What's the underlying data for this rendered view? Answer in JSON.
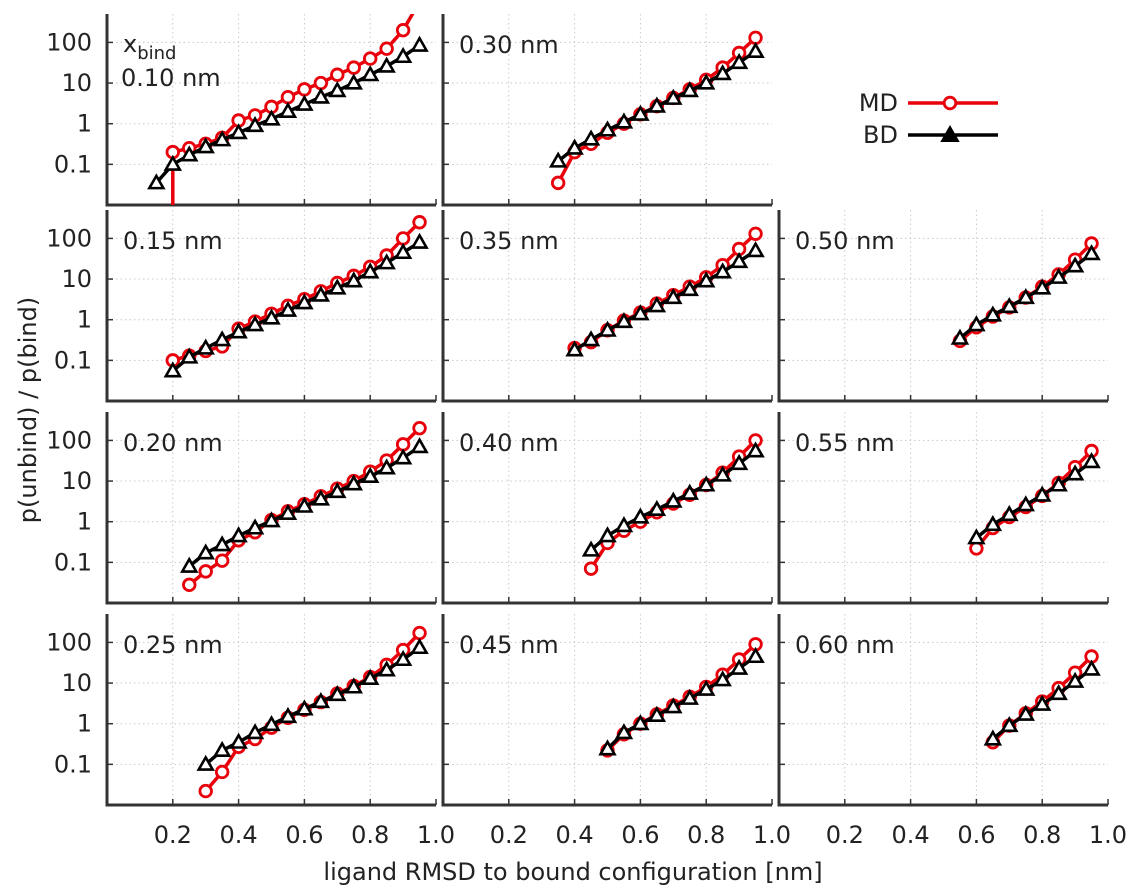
{
  "chart_data": {
    "type": "line",
    "ylabel": "p(unbind) / p(bind)",
    "xlabel": "ligand RMSD to bound configuration [nm]",
    "x_scale": "linear",
    "y_scale": "log",
    "xlim": [
      0,
      1.0
    ],
    "ylim": [
      0.01,
      500
    ],
    "x_ticks": [
      0.2,
      0.4,
      0.6,
      0.8,
      1.0
    ],
    "x_tick_labels": [
      "0.2",
      "0.4",
      "0.6",
      "0.8",
      "1.0"
    ],
    "y_ticks": [
      0.1,
      1,
      10,
      100
    ],
    "y_tick_labels": [
      "0.1",
      "1",
      "10",
      "100"
    ],
    "grid": true,
    "legend": {
      "placement": "top-right",
      "entries": [
        {
          "name": "MD",
          "color": "#e8000b",
          "marker": "open-circle"
        },
        {
          "name": "BD",
          "color": "#000000",
          "marker": "triangle"
        }
      ]
    },
    "legend_heading": {
      "main": "x",
      "sub": "bind"
    },
    "panels": [
      {
        "label": "0.10 nm",
        "row": 0,
        "col": 0,
        "MD": {
          "x": [
            0.2,
            0.25,
            0.3,
            0.35,
            0.4,
            0.45,
            0.5,
            0.55,
            0.6,
            0.65,
            0.7,
            0.75,
            0.8,
            0.85,
            0.9,
            0.95
          ],
          "y": [
            0.2,
            0.25,
            0.32,
            0.45,
            1.2,
            1.6,
            2.6,
            4.5,
            7,
            10,
            16,
            24,
            40,
            70,
            200,
            1000
          ],
          "drop_start": true
        },
        "BD": {
          "x": [
            0.15,
            0.2,
            0.25,
            0.3,
            0.35,
            0.4,
            0.45,
            0.5,
            0.55,
            0.6,
            0.65,
            0.7,
            0.75,
            0.8,
            0.85,
            0.9,
            0.95
          ],
          "y": [
            0.035,
            0.1,
            0.17,
            0.27,
            0.4,
            0.6,
            0.9,
            1.3,
            2,
            3,
            4.5,
            6.5,
            10,
            16,
            26,
            45,
            85
          ]
        }
      },
      {
        "label": "0.15 nm",
        "row": 1,
        "col": 0,
        "MD": {
          "x": [
            0.2,
            0.25,
            0.3,
            0.35,
            0.4,
            0.45,
            0.5,
            0.55,
            0.6,
            0.65,
            0.7,
            0.75,
            0.8,
            0.85,
            0.9,
            0.95
          ],
          "y": [
            0.1,
            0.13,
            0.17,
            0.22,
            0.6,
            0.9,
            1.4,
            2.2,
            3.2,
            5,
            8,
            12,
            20,
            38,
            100,
            250
          ]
        },
        "BD": {
          "x": [
            0.2,
            0.25,
            0.3,
            0.35,
            0.4,
            0.45,
            0.5,
            0.55,
            0.6,
            0.65,
            0.7,
            0.75,
            0.8,
            0.85,
            0.9,
            0.95
          ],
          "y": [
            0.055,
            0.12,
            0.2,
            0.32,
            0.5,
            0.75,
            1.1,
            1.7,
            2.6,
            4,
            6,
            9,
            15,
            25,
            45,
            80
          ]
        }
      },
      {
        "label": "0.20 nm",
        "row": 2,
        "col": 0,
        "MD": {
          "x": [
            0.25,
            0.3,
            0.35,
            0.4,
            0.45,
            0.5,
            0.55,
            0.6,
            0.65,
            0.7,
            0.75,
            0.8,
            0.85,
            0.9,
            0.95
          ],
          "y": [
            0.028,
            0.06,
            0.11,
            0.35,
            0.55,
            1.1,
            1.8,
            2.7,
            4.2,
            6.5,
            10,
            17,
            32,
            80,
            200
          ]
        },
        "BD": {
          "x": [
            0.25,
            0.3,
            0.35,
            0.4,
            0.45,
            0.5,
            0.55,
            0.6,
            0.65,
            0.7,
            0.75,
            0.8,
            0.85,
            0.9,
            0.95
          ],
          "y": [
            0.08,
            0.17,
            0.27,
            0.45,
            0.7,
            1.05,
            1.6,
            2.4,
            3.6,
            5.5,
            8.5,
            13,
            21,
            37,
            70
          ]
        }
      },
      {
        "label": "0.25 nm",
        "row": 3,
        "col": 0,
        "MD": {
          "x": [
            0.3,
            0.35,
            0.4,
            0.45,
            0.5,
            0.55,
            0.6,
            0.65,
            0.7,
            0.75,
            0.8,
            0.85,
            0.9,
            0.95
          ],
          "y": [
            0.022,
            0.065,
            0.27,
            0.42,
            0.8,
            1.4,
            2.2,
            3.4,
            5.5,
            8.5,
            14,
            28,
            65,
            170
          ]
        },
        "BD": {
          "x": [
            0.3,
            0.35,
            0.4,
            0.45,
            0.5,
            0.55,
            0.6,
            0.65,
            0.7,
            0.75,
            0.8,
            0.85,
            0.9,
            0.95
          ],
          "y": [
            0.1,
            0.22,
            0.35,
            0.6,
            0.95,
            1.5,
            2.3,
            3.5,
            5.2,
            8,
            13,
            21,
            38,
            75
          ]
        }
      },
      {
        "label": "0.30 nm",
        "row": 0,
        "col": 1,
        "MD": {
          "x": [
            0.35,
            0.4,
            0.45,
            0.5,
            0.55,
            0.6,
            0.65,
            0.7,
            0.75,
            0.8,
            0.85,
            0.9,
            0.95
          ],
          "y": [
            0.035,
            0.2,
            0.32,
            0.6,
            1.0,
            1.7,
            2.7,
            4.3,
            7,
            12,
            24,
            55,
            130
          ]
        },
        "BD": {
          "x": [
            0.35,
            0.4,
            0.45,
            0.5,
            0.55,
            0.6,
            0.65,
            0.7,
            0.75,
            0.8,
            0.85,
            0.9,
            0.95
          ],
          "y": [
            0.12,
            0.25,
            0.42,
            0.7,
            1.1,
            1.7,
            2.7,
            4.2,
            6.5,
            10,
            17,
            32,
            60
          ]
        }
      },
      {
        "label": "0.35 nm",
        "row": 1,
        "col": 1,
        "MD": {
          "x": [
            0.4,
            0.45,
            0.5,
            0.55,
            0.6,
            0.65,
            0.7,
            0.75,
            0.8,
            0.85,
            0.9,
            0.95
          ],
          "y": [
            0.2,
            0.28,
            0.55,
            0.95,
            1.5,
            2.5,
            4,
            6.5,
            11,
            22,
            55,
            130
          ]
        },
        "BD": {
          "x": [
            0.4,
            0.45,
            0.5,
            0.55,
            0.6,
            0.65,
            0.7,
            0.75,
            0.8,
            0.85,
            0.9,
            0.95
          ],
          "y": [
            0.18,
            0.32,
            0.55,
            0.9,
            1.4,
            2.2,
            3.5,
            5.5,
            9,
            15,
            27,
            50
          ]
        }
      },
      {
        "label": "0.40 nm",
        "row": 2,
        "col": 1,
        "MD": {
          "x": [
            0.45,
            0.5,
            0.55,
            0.6,
            0.65,
            0.7,
            0.75,
            0.8,
            0.85,
            0.9,
            0.95
          ],
          "y": [
            0.07,
            0.3,
            0.6,
            1.0,
            1.7,
            2.8,
            4.6,
            8,
            16,
            40,
            100
          ]
        },
        "BD": {
          "x": [
            0.45,
            0.5,
            0.55,
            0.6,
            0.65,
            0.7,
            0.75,
            0.8,
            0.85,
            0.9,
            0.95
          ],
          "y": [
            0.2,
            0.45,
            0.8,
            1.3,
            2.0,
            3.2,
            5,
            8,
            14,
            27,
            55
          ]
        }
      },
      {
        "label": "0.45 nm",
        "row": 3,
        "col": 1,
        "MD": {
          "x": [
            0.5,
            0.55,
            0.6,
            0.65,
            0.7,
            0.75,
            0.8,
            0.85,
            0.9,
            0.95
          ],
          "y": [
            0.22,
            0.55,
            1.0,
            1.7,
            2.8,
            4.6,
            8,
            16,
            38,
            90
          ]
        },
        "BD": {
          "x": [
            0.5,
            0.55,
            0.6,
            0.65,
            0.7,
            0.75,
            0.8,
            0.85,
            0.9,
            0.95
          ],
          "y": [
            0.24,
            0.6,
            1.0,
            1.6,
            2.6,
            4.2,
            7,
            12,
            23,
            45
          ]
        }
      },
      {
        "label": "0.50 nm",
        "row": 1,
        "col": 2,
        "MD": {
          "x": [
            0.55,
            0.6,
            0.65,
            0.7,
            0.75,
            0.8,
            0.85,
            0.9,
            0.95
          ],
          "y": [
            0.3,
            0.65,
            1.2,
            2.0,
            3.5,
            6.5,
            13,
            30,
            75
          ]
        },
        "BD": {
          "x": [
            0.55,
            0.6,
            0.65,
            0.7,
            0.75,
            0.8,
            0.85,
            0.9,
            0.95
          ],
          "y": [
            0.35,
            0.75,
            1.3,
            2.1,
            3.5,
            6,
            11,
            21,
            42
          ]
        }
      },
      {
        "label": "0.55 nm",
        "row": 2,
        "col": 2,
        "MD": {
          "x": [
            0.6,
            0.65,
            0.7,
            0.75,
            0.8,
            0.85,
            0.9,
            0.95
          ],
          "y": [
            0.22,
            0.7,
            1.3,
            2.3,
            4.3,
            9,
            22,
            55
          ]
        },
        "BD": {
          "x": [
            0.6,
            0.65,
            0.7,
            0.75,
            0.8,
            0.85,
            0.9,
            0.95
          ],
          "y": [
            0.4,
            0.85,
            1.5,
            2.6,
            4.5,
            8,
            15,
            30
          ]
        }
      },
      {
        "label": "0.60 nm",
        "row": 3,
        "col": 2,
        "MD": {
          "x": [
            0.65,
            0.7,
            0.75,
            0.8,
            0.85,
            0.9,
            0.95
          ],
          "y": [
            0.35,
            0.9,
            1.8,
            3.5,
            7.5,
            18,
            45
          ]
        },
        "BD": {
          "x": [
            0.65,
            0.7,
            0.75,
            0.8,
            0.85,
            0.9,
            0.95
          ],
          "y": [
            0.42,
            0.9,
            1.7,
            3.0,
            5.5,
            11,
            22
          ]
        }
      }
    ]
  }
}
